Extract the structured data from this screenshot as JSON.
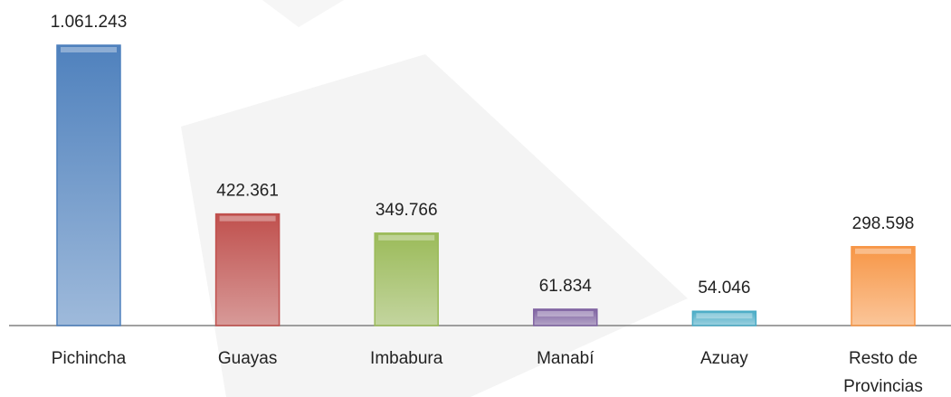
{
  "chart_data": {
    "type": "bar",
    "categories": [
      "Pichincha",
      "Guayas",
      "Imbabura",
      "Manabí",
      "Azuay",
      "Resto de Provincias"
    ],
    "values": [
      1061243,
      422361,
      349766,
      61834,
      54046,
      298598
    ],
    "value_labels": [
      "1.061.243",
      "422.361",
      "349.766",
      "61.834",
      "54.046",
      "298.598"
    ],
    "colors": [
      "#4f81bd",
      "#c0504d",
      "#9bbb59",
      "#8064a2",
      "#4bacc6",
      "#f79646"
    ]
  }
}
